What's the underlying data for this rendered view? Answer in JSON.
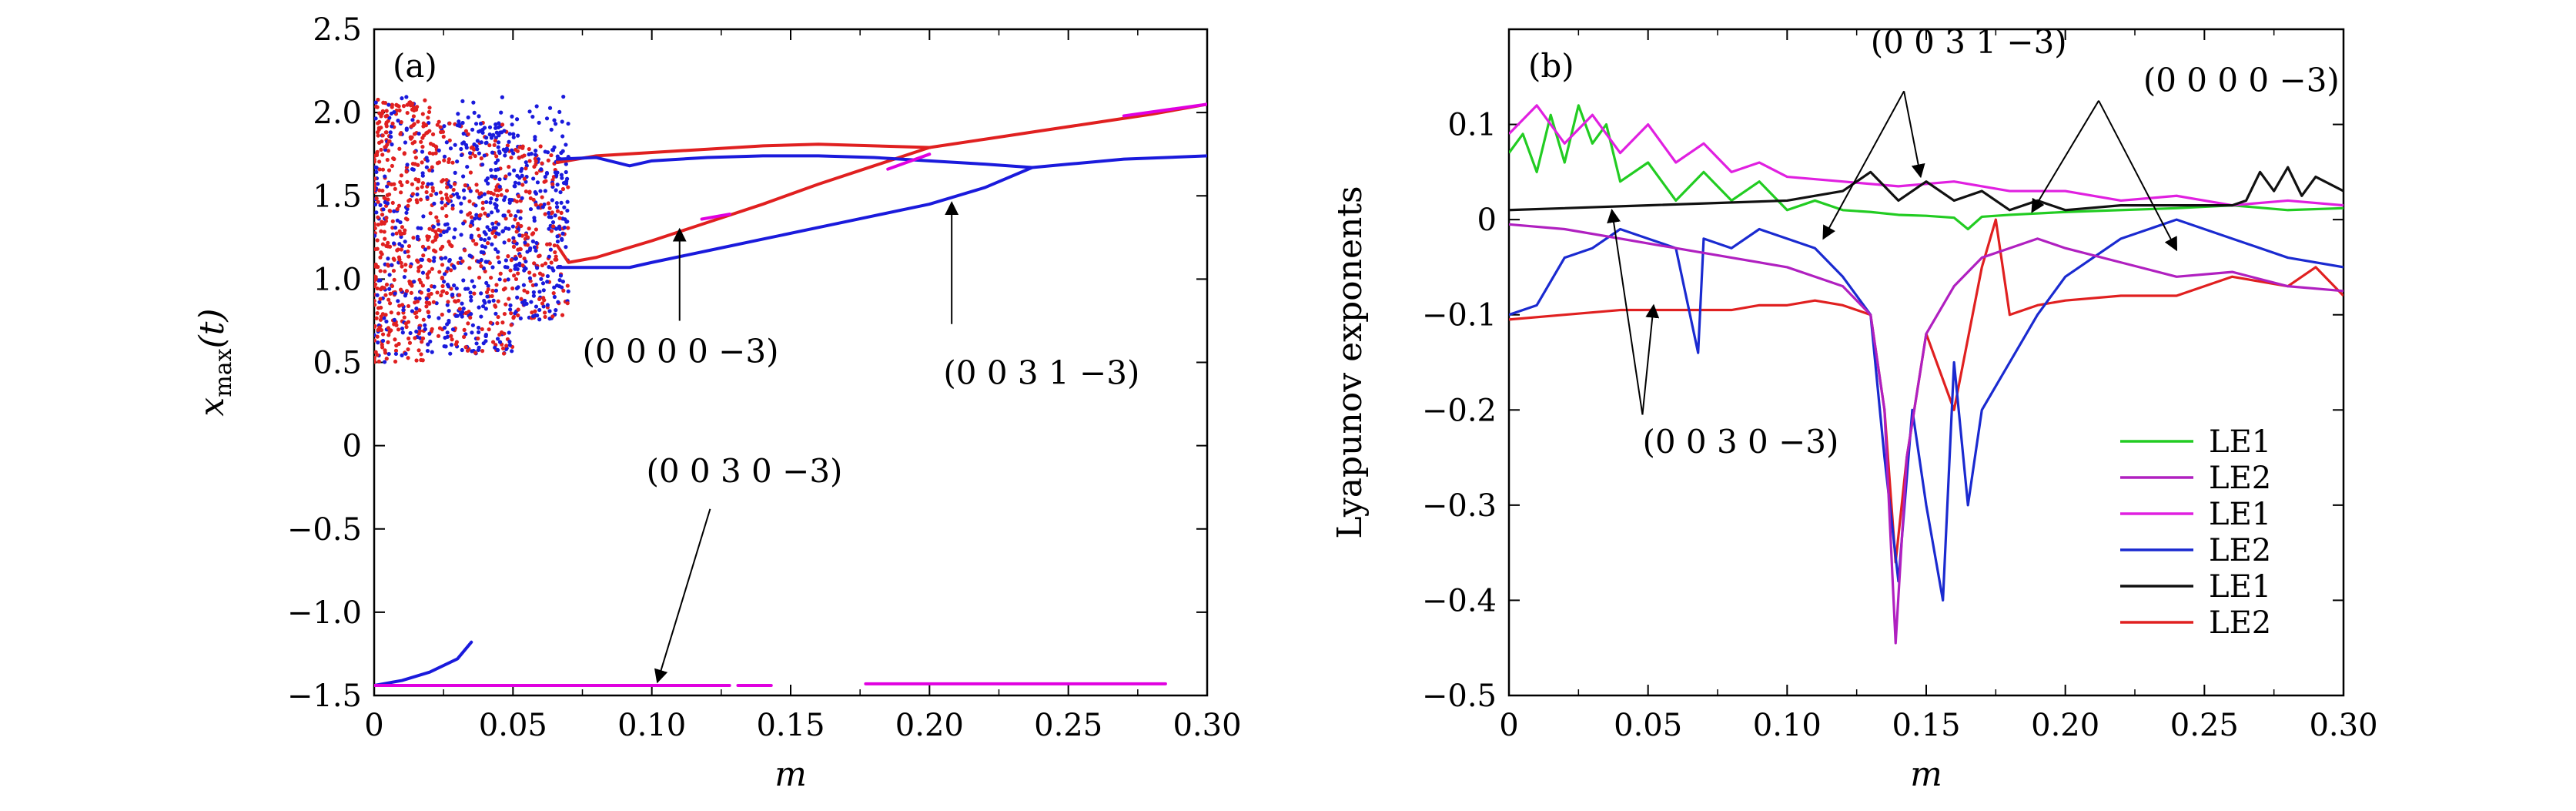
{
  "chart_data": [
    {
      "type": "scatter",
      "panel_label": "(a)",
      "xlabel": "m",
      "ylabel": "x_max(t)",
      "xlim": [
        0,
        0.3
      ],
      "ylim": [
        -1.5,
        2.5
      ],
      "xticks": [
        0,
        0.05,
        0.1,
        0.15,
        0.2,
        0.25,
        0.3
      ],
      "xtick_labels": [
        "0",
        "0.05",
        "0.10",
        "0.15",
        "0.20",
        "0.25",
        "0.30"
      ],
      "yticks": [
        -1.5,
        -1.0,
        -0.5,
        0,
        0.5,
        1.0,
        1.5,
        2.0,
        2.5
      ],
      "ytick_labels": [
        "−1.5",
        "−1.0",
        "−0.5",
        "0",
        "0.5",
        "1.0",
        "1.5",
        "2.0",
        "2.5"
      ],
      "series": [
        {
          "color": "#e02020",
          "branches": [
            {
              "x": [
                0.066,
                0.08,
                0.1,
                0.12,
                0.14,
                0.16,
                0.18,
                0.2
              ],
              "y": [
                1.7,
                1.74,
                1.76,
                1.78,
                1.8,
                1.81,
                1.8,
                1.79
              ]
            },
            {
              "x": [
                0.2,
                0.22,
                0.24,
                0.26,
                0.28,
                0.3
              ],
              "y": [
                1.79,
                1.84,
                1.89,
                1.94,
                1.99,
                2.05
              ]
            },
            {
              "x": [
                0.066,
                0.07,
                0.08,
                0.1,
                0.12,
                0.14,
                0.16,
                0.18,
                0.2
              ],
              "y": [
                1.2,
                1.1,
                1.13,
                1.23,
                1.34,
                1.45,
                1.57,
                1.68,
                1.79
              ]
            }
          ]
        },
        {
          "color": "#1a1adc",
          "branches": [
            {
              "x": [
                0.066,
                0.08,
                0.092,
                0.1,
                0.12,
                0.14,
                0.16,
                0.18,
                0.2,
                0.22,
                0.237
              ],
              "y": [
                1.72,
                1.73,
                1.68,
                1.71,
                1.73,
                1.74,
                1.74,
                1.73,
                1.71,
                1.69,
                1.67
              ]
            },
            {
              "x": [
                0.237,
                0.25,
                0.27,
                0.3
              ],
              "y": [
                1.67,
                1.69,
                1.72,
                1.74
              ]
            },
            {
              "x": [
                0.066,
                0.08,
                0.092,
                0.1,
                0.12,
                0.14,
                0.16,
                0.18,
                0.2,
                0.22,
                0.237
              ],
              "y": [
                1.07,
                1.07,
                1.07,
                1.1,
                1.17,
                1.24,
                1.31,
                1.38,
                1.45,
                1.55,
                1.67
              ]
            },
            {
              "x": [
                0,
                0.01,
                0.02,
                0.03,
                0.035
              ],
              "y": [
                -1.44,
                -1.41,
                -1.36,
                -1.28,
                -1.18
              ]
            }
          ]
        },
        {
          "color": "#e000e0",
          "branches": [
            {
              "x": [
                0,
                0.128
              ],
              "y": [
                -1.44,
                -1.44
              ]
            },
            {
              "x": [
                0.131,
                0.143
              ],
              "y": [
                -1.44,
                -1.44
              ]
            },
            {
              "x": [
                0.177,
                0.285
              ],
              "y": [
                -1.43,
                -1.43
              ]
            },
            {
              "x": [
                0.118,
                0.128
              ],
              "y": [
                1.36,
                1.39
              ]
            },
            {
              "x": [
                0.185,
                0.2
              ],
              "y": [
                1.66,
                1.75
              ]
            },
            {
              "x": [
                0.27,
                0.3
              ],
              "y": [
                1.98,
                2.05
              ]
            }
          ]
        }
      ],
      "annotations": [
        {
          "text": "(0 0 0 0 −3)",
          "text_pos": [
            0.075,
            0.5
          ],
          "arrow_from": [
            0.11,
            0.75
          ],
          "arrow_to": [
            0.11,
            1.3
          ]
        },
        {
          "text": "(0 0 3 1 −3)",
          "text_pos": [
            0.205,
            0.37
          ],
          "arrow_from": [
            0.208,
            0.73
          ],
          "arrow_to": [
            0.208,
            1.46
          ]
        },
        {
          "text": "(0 0 3 0 −3)",
          "text_pos": [
            0.098,
            -0.22
          ],
          "arrow_from": [
            0.121,
            -0.38
          ],
          "arrow_to": [
            0.102,
            -1.42
          ]
        }
      ]
    },
    {
      "type": "line",
      "panel_label": "(b)",
      "xlabel": "m",
      "ylabel": "Lyapunov exponents",
      "xlim": [
        0,
        0.3
      ],
      "ylim": [
        -0.5,
        0.2
      ],
      "xticks": [
        0,
        0.05,
        0.1,
        0.15,
        0.2,
        0.25,
        0.3
      ],
      "xtick_labels": [
        "0",
        "0.05",
        "0.10",
        "0.15",
        "0.20",
        "0.25",
        "0.30"
      ],
      "yticks": [
        -0.5,
        -0.4,
        -0.3,
        -0.2,
        -0.1,
        0,
        0.1
      ],
      "ytick_labels": [
        "−0.5",
        "−0.4",
        "−0.3",
        "−0.2",
        "−0.1",
        "0",
        "0.1"
      ],
      "legend_position": "lower-right",
      "series": [
        {
          "name": "LE1",
          "color": "#22cc22",
          "x": [
            0,
            0.005,
            0.01,
            0.015,
            0.02,
            0.025,
            0.03,
            0.035,
            0.04,
            0.05,
            0.06,
            0.07,
            0.08,
            0.09,
            0.1,
            0.11,
            0.12,
            0.13,
            0.14,
            0.15,
            0.16,
            0.165,
            0.17,
            0.18,
            0.2,
            0.22,
            0.24,
            0.26,
            0.28,
            0.3
          ],
          "y": [
            0.07,
            0.09,
            0.05,
            0.11,
            0.06,
            0.12,
            0.08,
            0.1,
            0.04,
            0.06,
            0.02,
            0.05,
            0.02,
            0.04,
            0.01,
            0.02,
            0.01,
            0.008,
            0.005,
            0.004,
            0.002,
            -0.01,
            0.003,
            0.005,
            0.008,
            0.01,
            0.012,
            0.015,
            0.01,
            0.012
          ]
        },
        {
          "name": "LE2",
          "color": "#b020c0",
          "x": [
            0,
            0.02,
            0.04,
            0.06,
            0.08,
            0.1,
            0.11,
            0.12,
            0.13,
            0.135,
            0.139,
            0.143,
            0.15,
            0.16,
            0.17,
            0.18,
            0.19,
            0.2,
            0.22,
            0.24,
            0.26,
            0.28,
            0.3
          ],
          "y": [
            -0.005,
            -0.01,
            -0.02,
            -0.03,
            -0.04,
            -0.05,
            -0.06,
            -0.07,
            -0.1,
            -0.2,
            -0.445,
            -0.25,
            -0.12,
            -0.07,
            -0.04,
            -0.03,
            -0.02,
            -0.03,
            -0.045,
            -0.06,
            -0.055,
            -0.07,
            -0.075
          ]
        },
        {
          "name": "LE1",
          "color": "#e020e0",
          "x": [
            0,
            0.01,
            0.02,
            0.03,
            0.04,
            0.05,
            0.06,
            0.07,
            0.08,
            0.09,
            0.1,
            0.12,
            0.14,
            0.16,
            0.18,
            0.2,
            0.22,
            0.24,
            0.26,
            0.28,
            0.3
          ],
          "y": [
            0.09,
            0.12,
            0.08,
            0.11,
            0.07,
            0.1,
            0.06,
            0.08,
            0.05,
            0.06,
            0.045,
            0.04,
            0.035,
            0.04,
            0.03,
            0.03,
            0.02,
            0.025,
            0.015,
            0.02,
            0.015
          ]
        },
        {
          "name": "LE2",
          "color": "#1a2ad0",
          "x": [
            0,
            0.01,
            0.02,
            0.03,
            0.04,
            0.05,
            0.06,
            0.068,
            0.07,
            0.08,
            0.09,
            0.1,
            0.11,
            0.12,
            0.13,
            0.135,
            0.14,
            0.145,
            0.15,
            0.156,
            0.16,
            0.165,
            0.17,
            0.18,
            0.19,
            0.2,
            0.22,
            0.24,
            0.26,
            0.28,
            0.3
          ],
          "y": [
            -0.1,
            -0.09,
            -0.04,
            -0.03,
            -0.01,
            -0.02,
            -0.03,
            -0.14,
            -0.02,
            -0.03,
            -0.01,
            -0.02,
            -0.03,
            -0.06,
            -0.1,
            -0.25,
            -0.38,
            -0.2,
            -0.3,
            -0.4,
            -0.15,
            -0.3,
            -0.2,
            -0.15,
            -0.1,
            -0.06,
            -0.02,
            0.0,
            -0.02,
            -0.04,
            -0.05
          ]
        },
        {
          "name": "LE1",
          "color": "#111111",
          "x": [
            0,
            0.05,
            0.1,
            0.12,
            0.13,
            0.14,
            0.15,
            0.16,
            0.17,
            0.18,
            0.19,
            0.2,
            0.22,
            0.24,
            0.26,
            0.265,
            0.27,
            0.275,
            0.28,
            0.285,
            0.29,
            0.3
          ],
          "y": [
            0.01,
            0.015,
            0.02,
            0.03,
            0.05,
            0.02,
            0.04,
            0.02,
            0.03,
            0.01,
            0.02,
            0.01,
            0.015,
            0.015,
            0.015,
            0.02,
            0.05,
            0.03,
            0.055,
            0.025,
            0.045,
            0.03
          ]
        },
        {
          "name": "LE2",
          "color": "#e02020",
          "x": [
            0,
            0.02,
            0.04,
            0.06,
            0.08,
            0.09,
            0.1,
            0.11,
            0.12,
            0.13,
            0.135,
            0.139,
            0.143,
            0.15,
            0.16,
            0.17,
            0.175,
            0.18,
            0.19,
            0.2,
            0.22,
            0.24,
            0.26,
            0.28,
            0.29,
            0.3
          ],
          "y": [
            -0.105,
            -0.1,
            -0.095,
            -0.095,
            -0.095,
            -0.09,
            -0.09,
            -0.085,
            -0.09,
            -0.1,
            -0.2,
            -0.36,
            -0.25,
            -0.12,
            -0.2,
            -0.05,
            0.0,
            -0.1,
            -0.09,
            -0.085,
            -0.08,
            -0.08,
            -0.06,
            -0.07,
            -0.05,
            -0.08
          ]
        }
      ],
      "annotations": [
        {
          "text": "(0 0 3 1 −3)",
          "text_pos": [
            0.13,
            0.175
          ],
          "arrows": [
            {
              "from": [
                0.142,
                0.135
              ],
              "to": [
                0.113,
                -0.02
              ]
            },
            {
              "from": [
                0.142,
                0.135
              ],
              "to": [
                0.148,
                0.045
              ]
            }
          ]
        },
        {
          "text": "(0 0 0 0 −3)",
          "text_pos": [
            0.228,
            0.135
          ],
          "arrows": [
            {
              "from": [
                0.212,
                0.125
              ],
              "to": [
                0.188,
                0.008
              ]
            },
            {
              "from": [
                0.212,
                0.125
              ],
              "to": [
                0.24,
                -0.032
              ]
            }
          ]
        },
        {
          "text": "(0 0 3 0 −3)",
          "text_pos": [
            0.048,
            -0.245
          ],
          "arrows": [
            {
              "from": [
                0.048,
                -0.205
              ],
              "to": [
                0.037,
                0.01
              ]
            },
            {
              "from": [
                0.048,
                -0.205
              ],
              "to": [
                0.052,
                -0.09
              ]
            }
          ]
        }
      ]
    }
  ]
}
